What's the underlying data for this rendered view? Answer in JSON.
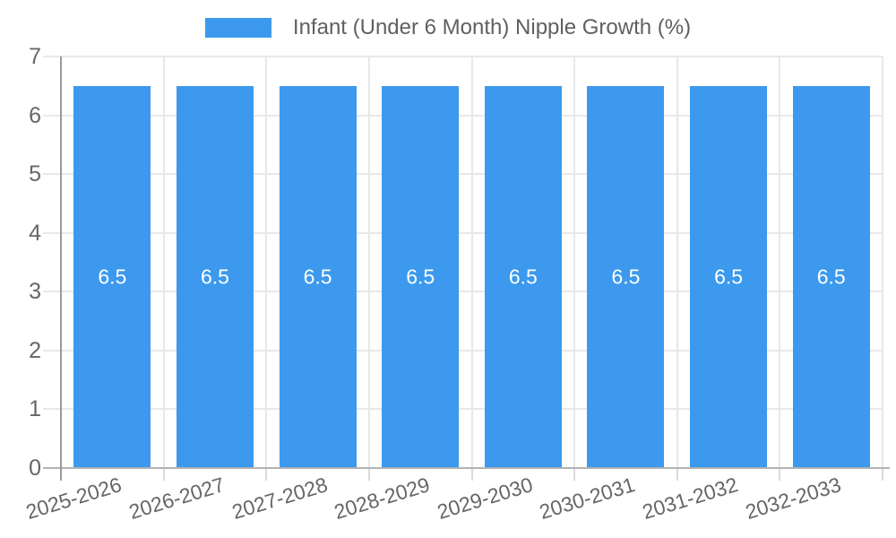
{
  "chart_data": {
    "type": "bar",
    "title": "Infant (Under 6 Month) Nipple Growth (%)",
    "categories": [
      "2025-2026",
      "2026-2027",
      "2027-2028",
      "2028-2029",
      "2029-2030",
      "2030-2031",
      "2031-2032",
      "2032-2033"
    ],
    "values": [
      6.5,
      6.5,
      6.5,
      6.5,
      6.5,
      6.5,
      6.5,
      6.5
    ],
    "bar_labels": [
      "6.5",
      "6.5",
      "6.5",
      "6.5",
      "6.5",
      "6.5",
      "6.5",
      "6.5"
    ],
    "ylim": [
      0,
      7
    ],
    "yticks": [
      0,
      1,
      2,
      3,
      4,
      5,
      6,
      7
    ],
    "grid": true,
    "legend_position": "top",
    "x_label_rotation_deg": -17,
    "colors": {
      "bar": "#3C99ED",
      "bar_label": "#FFFFFF",
      "axis_text": "#666666",
      "legend_text": "#606060",
      "gridline": "#E8E8E8",
      "baseline": "#B3B3B3",
      "axis_line": "#999999",
      "tick": "#DADADA",
      "background": "#FFFFFF"
    }
  }
}
